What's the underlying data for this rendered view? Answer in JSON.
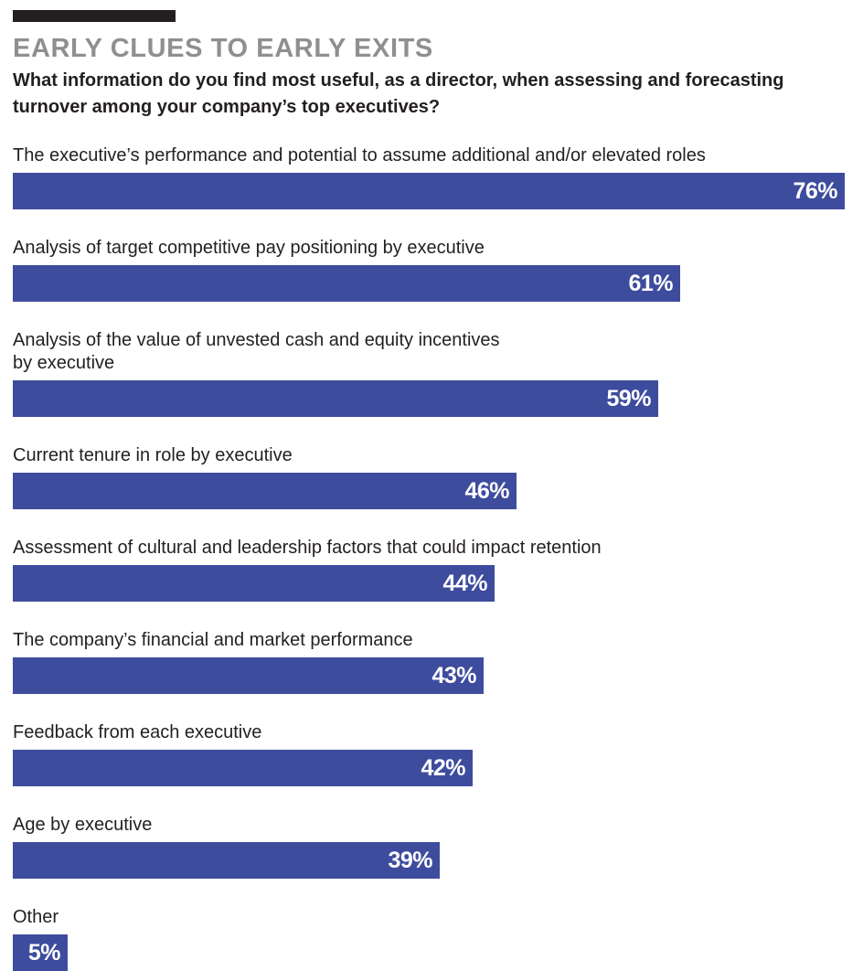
{
  "chart_data": {
    "type": "bar",
    "orientation": "horizontal",
    "title": "EARLY CLUES TO EARLY EXITS",
    "subtitle": "What information do you find most useful, as a director, when assessing and forecasting turnover among your company’s top executives?",
    "categories": [
      "The executive’s performance and potential to assume additional and/or elevated roles",
      "Analysis of target competitive pay positioning by executive",
      "Analysis of the value of unvested cash and equity incentives\nby executive",
      "Current tenure in role by executive",
      "Assessment of cultural and leadership factors that could impact retention",
      "The company’s financial and market performance",
      "Feedback from each executive",
      "Age by executive",
      "Other"
    ],
    "values": [
      76,
      61,
      59,
      46,
      44,
      43,
      42,
      39,
      5
    ],
    "value_labels": [
      "76%",
      "61%",
      "59%",
      "46%",
      "44%",
      "43%",
      "42%",
      "39%",
      "5%"
    ],
    "unit": "%",
    "xlim": [
      0,
      76
    ],
    "grid": false,
    "legend": "none"
  },
  "colors": {
    "bar": "#3e4c9e",
    "title": "#8f8f8f",
    "text": "#231f20",
    "value_text": "#ffffff",
    "top_rule": "#231f20"
  }
}
